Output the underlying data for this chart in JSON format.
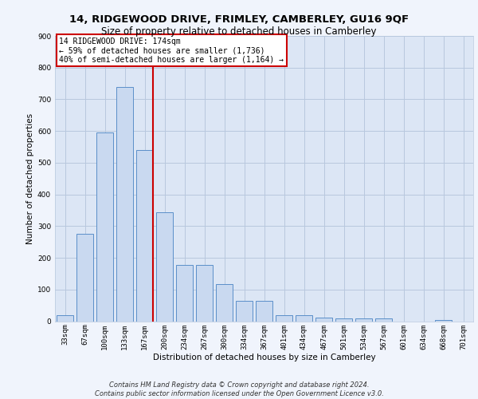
{
  "title_line1": "14, RIDGEWOOD DRIVE, FRIMLEY, CAMBERLEY, GU16 9QF",
  "title_line2": "Size of property relative to detached houses in Camberley",
  "xlabel": "Distribution of detached houses by size in Camberley",
  "ylabel": "Number of detached properties",
  "categories": [
    "33sqm",
    "67sqm",
    "100sqm",
    "133sqm",
    "167sqm",
    "200sqm",
    "234sqm",
    "267sqm",
    "300sqm",
    "334sqm",
    "367sqm",
    "401sqm",
    "434sqm",
    "467sqm",
    "501sqm",
    "534sqm",
    "567sqm",
    "601sqm",
    "634sqm",
    "668sqm",
    "701sqm"
  ],
  "values": [
    20,
    275,
    595,
    740,
    540,
    343,
    178,
    178,
    118,
    65,
    65,
    20,
    20,
    12,
    8,
    8,
    8,
    0,
    0,
    5,
    0
  ],
  "bar_color": "#c9d9f0",
  "bar_edge_color": "#5b8fc9",
  "vline_color": "#cc0000",
  "annotation_text": "14 RIDGEWOOD DRIVE: 174sqm\n← 59% of detached houses are smaller (1,736)\n40% of semi-detached houses are larger (1,164) →",
  "annotation_box_color": "#ffffff",
  "annotation_box_edge_color": "#cc0000",
  "ylim": [
    0,
    900
  ],
  "yticks": [
    0,
    100,
    200,
    300,
    400,
    500,
    600,
    700,
    800,
    900
  ],
  "footer_text": "Contains HM Land Registry data © Crown copyright and database right 2024.\nContains public sector information licensed under the Open Government Licence v3.0.",
  "bg_color": "#dce6f5",
  "grid_color": "#b8c8de",
  "fig_bg_color": "#f0f4fc",
  "title1_fontsize": 9.5,
  "title2_fontsize": 8.5,
  "axis_label_fontsize": 7.5,
  "tick_fontsize": 6.5,
  "annotation_fontsize": 7,
  "footer_fontsize": 6
}
